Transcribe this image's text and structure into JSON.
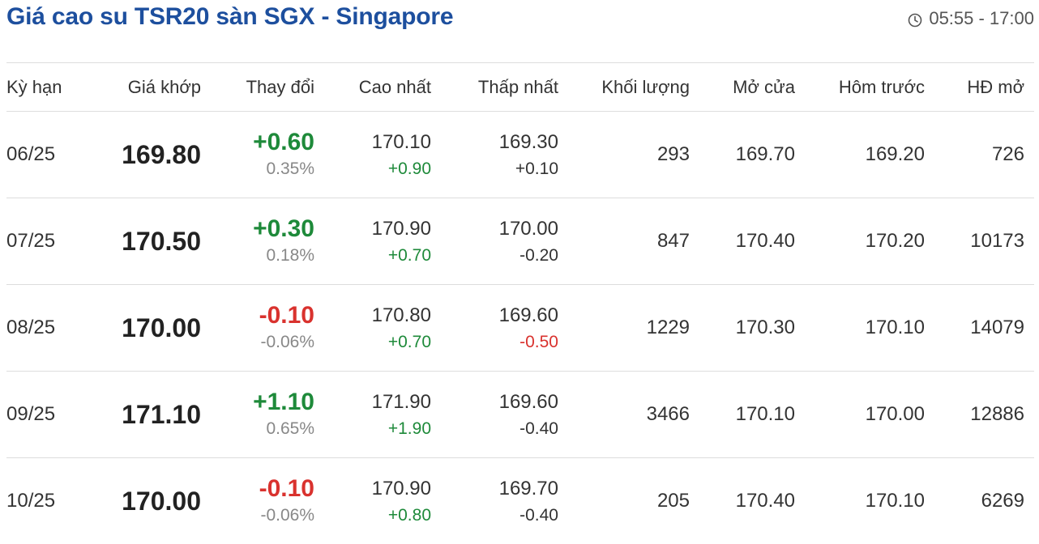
{
  "header": {
    "title": "Giá cao su TSR20 sàn SGX - Singapore",
    "session_time": "05:55 - 17:00",
    "session_icon": "clock-icon"
  },
  "colors": {
    "title": "#1d4f9e",
    "up": "#1e8a3a",
    "down": "#d9322e"
  },
  "columns": {
    "term": "Kỳ hạn",
    "price": "Giá khớp",
    "change": "Thay đổi",
    "high": "Cao nhất",
    "low": "Thấp nhất",
    "volume": "Khối lượng",
    "open": "Mở cửa",
    "prev": "Hôm trước",
    "oi": "HĐ mở"
  },
  "rows": [
    {
      "term": "06/25",
      "price": "169.80",
      "change": "+0.60",
      "change_pct": "0.35%",
      "change_dir": "up",
      "high": "170.10",
      "high_chg": "+0.90",
      "high_dir": "up",
      "low": "169.30",
      "low_chg": "+0.10",
      "low_dir": "neutral",
      "volume": "293",
      "open": "169.70",
      "prev": "169.20",
      "oi": "726"
    },
    {
      "term": "07/25",
      "price": "170.50",
      "change": "+0.30",
      "change_pct": "0.18%",
      "change_dir": "up",
      "high": "170.90",
      "high_chg": "+0.70",
      "high_dir": "up",
      "low": "170.00",
      "low_chg": "-0.20",
      "low_dir": "neutral",
      "volume": "847",
      "open": "170.40",
      "prev": "170.20",
      "oi": "10173"
    },
    {
      "term": "08/25",
      "price": "170.00",
      "change": "-0.10",
      "change_pct": "-0.06%",
      "change_dir": "down",
      "high": "170.80",
      "high_chg": "+0.70",
      "high_dir": "up",
      "low": "169.60",
      "low_chg": "-0.50",
      "low_dir": "down",
      "volume": "1229",
      "open": "170.30",
      "prev": "170.10",
      "oi": "14079"
    },
    {
      "term": "09/25",
      "price": "171.10",
      "change": "+1.10",
      "change_pct": "0.65%",
      "change_dir": "up",
      "high": "171.90",
      "high_chg": "+1.90",
      "high_dir": "up",
      "low": "169.60",
      "low_chg": "-0.40",
      "low_dir": "neutral",
      "volume": "3466",
      "open": "170.10",
      "prev": "170.00",
      "oi": "12886"
    },
    {
      "term": "10/25",
      "price": "170.00",
      "change": "-0.10",
      "change_pct": "-0.06%",
      "change_dir": "down",
      "high": "170.90",
      "high_chg": "+0.80",
      "high_dir": "up",
      "low": "169.70",
      "low_chg": "-0.40",
      "low_dir": "neutral",
      "volume": "205",
      "open": "170.40",
      "prev": "170.10",
      "oi": "6269"
    }
  ]
}
